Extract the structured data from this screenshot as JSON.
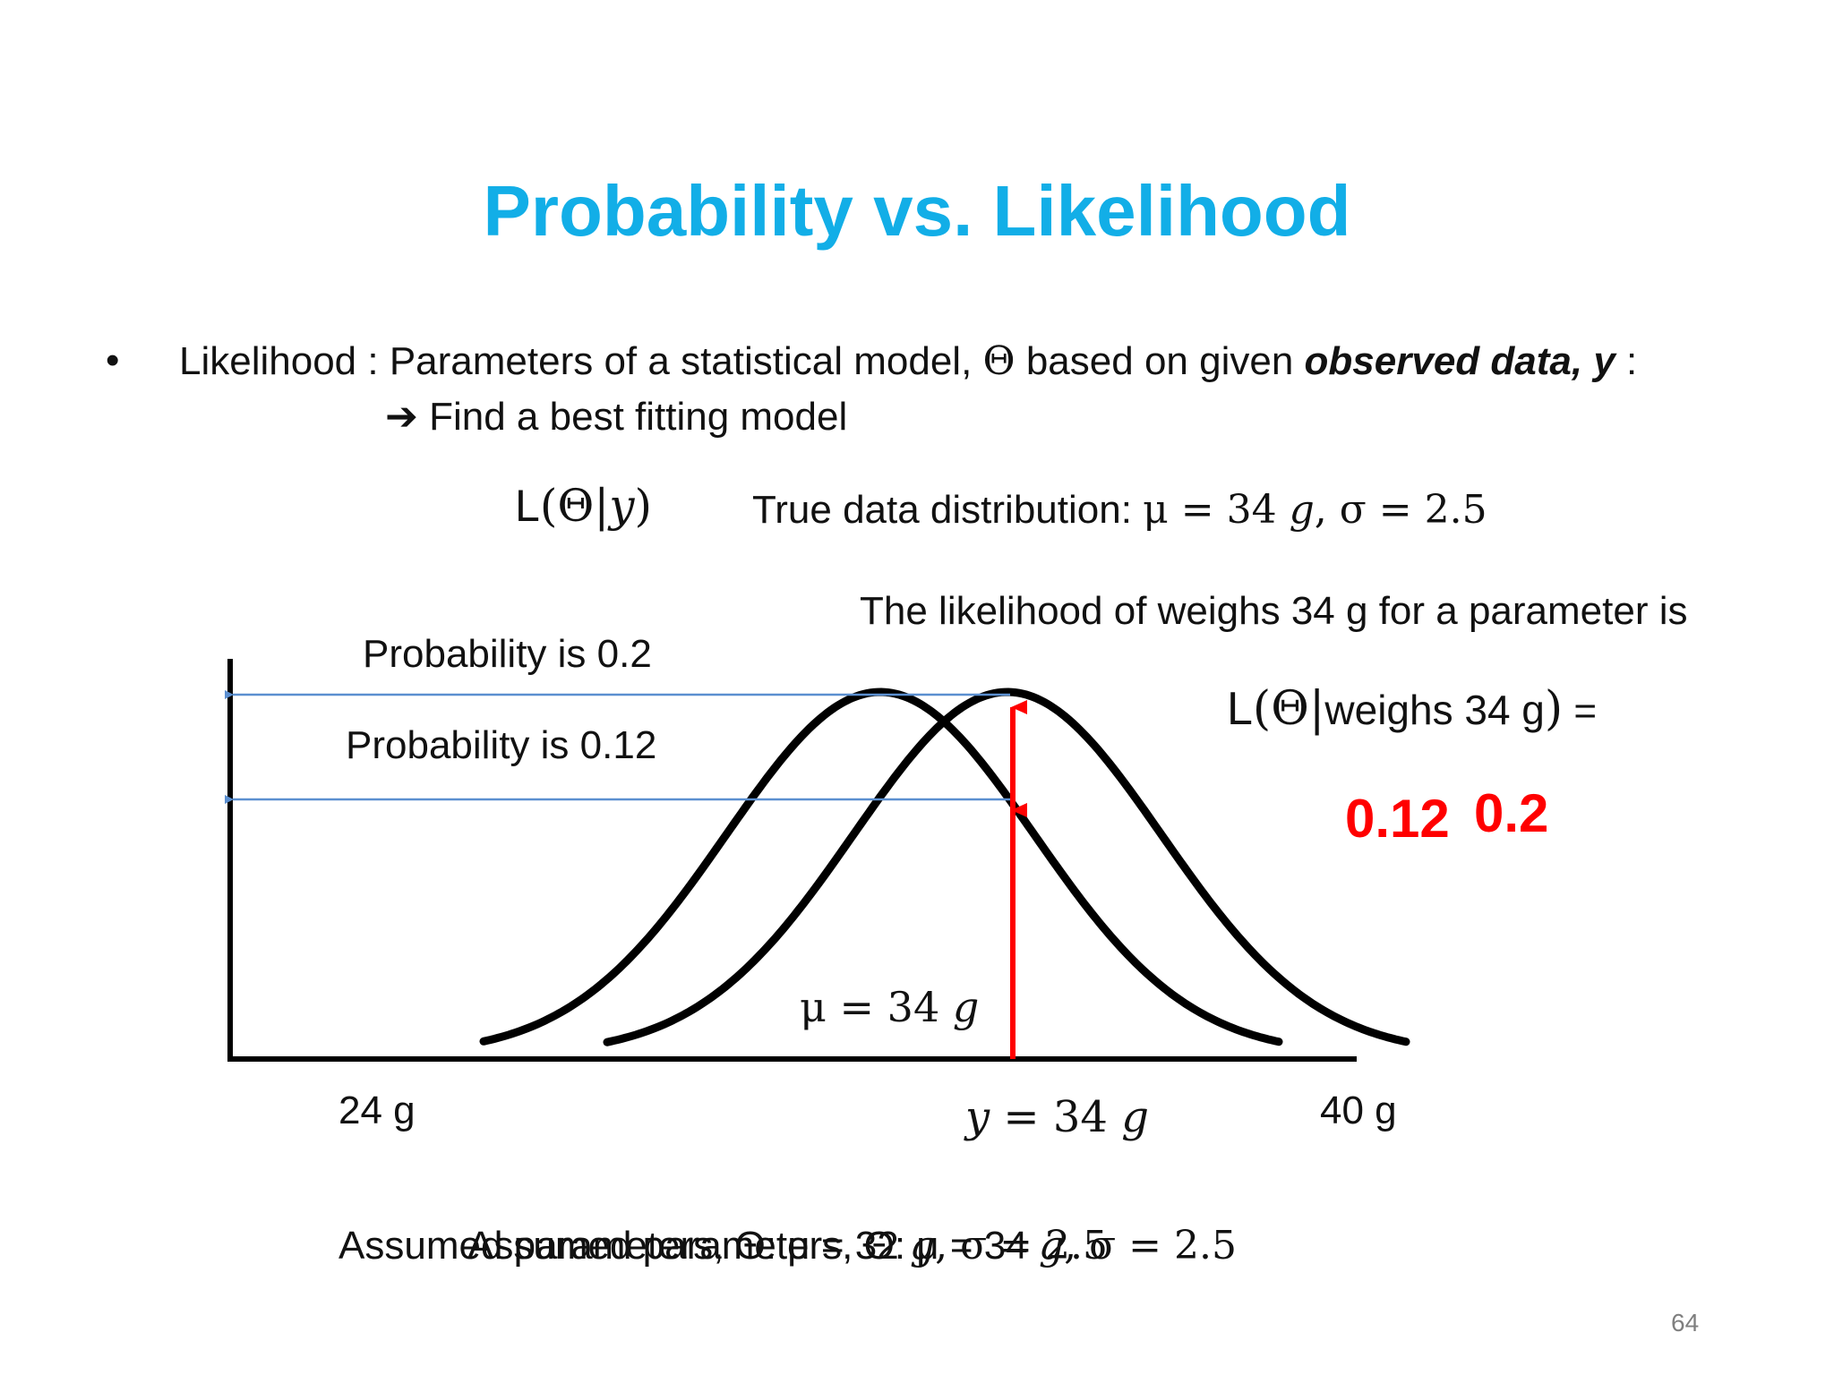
{
  "slide": {
    "title": "Probability vs. Likelihood",
    "page_number": "64"
  },
  "bullet": {
    "marker": "•",
    "prefix": "Likelihood : Parameters of a statistical model, ",
    "theta": "Θ",
    "middle": " based on given ",
    "emphasis": "observed data, y",
    "suffix": " :"
  },
  "subpoint": {
    "arrow": "➔",
    "text": "Find a best fitting model"
  },
  "notation": {
    "L": "L",
    "open": "(",
    "theta": "Θ",
    "bar": "|",
    "y": "y",
    "close": ")"
  },
  "true_dist": {
    "label": "True data distribution: ",
    "mu": "μ = 34 ",
    "g": "g",
    "rest": ", σ = 2.5"
  },
  "likelihood_note": {
    "line1": "The likelihood of weighs 34 g for a parameter is",
    "L": "L",
    "open": "(",
    "theta": "Θ",
    "bar": "|",
    "given": "weighs 34 g",
    "close": ")",
    "equals": " ="
  },
  "values": {
    "first": "0.12",
    "second": "0.2"
  },
  "diagram": {
    "prob_top": "Probability is 0.2",
    "prob_lower": "Probability is 0.12",
    "mu_label_pre": "μ = 34 ",
    "mu_label_g": "g",
    "x_left": "24 g",
    "x_right": "40 g",
    "y_pre": "y",
    "y_mid": " = 34 ",
    "y_g": "g",
    "colors": {
      "arrow_blue": "#5b8fd0",
      "arrow_red": "#ff0000",
      "curve": "#000000"
    }
  },
  "assumed": {
    "line_a_pre": "Assumed parameters, Θ: μ = 32 ",
    "line_a_g": "g",
    "line_a_post": ", σ = 2.5",
    "line_b_pre": "Assumed parameters, Θ: μ = 34 ",
    "line_b_g": "g",
    "line_b_post": ", σ = 2.5"
  }
}
